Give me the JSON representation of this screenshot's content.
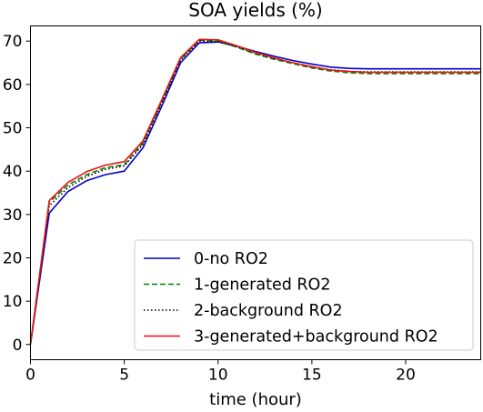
{
  "chart_data": {
    "type": "line",
    "title": "SOA yields (%)",
    "xlabel": "time (hour)",
    "ylabel": "",
    "xlim": [
      0,
      24
    ],
    "ylim": [
      -3.5,
      73.5
    ],
    "xticks": [
      0,
      5,
      10,
      15,
      20
    ],
    "yticks": [
      0,
      10,
      20,
      30,
      40,
      50,
      60,
      70
    ],
    "grid": false,
    "legend_position": "lower-right",
    "x": [
      0,
      1,
      2,
      3,
      4,
      5,
      6,
      7,
      8,
      9,
      10,
      11,
      12,
      13,
      14,
      15,
      16,
      17,
      18,
      19,
      20,
      21,
      22,
      23,
      24
    ],
    "series": [
      {
        "name": "0-no RO2",
        "color": "#0000cc",
        "style": "solid",
        "values": [
          0,
          30.3,
          35.3,
          37.8,
          39.2,
          40.0,
          45.4,
          55.0,
          65.0,
          69.6,
          69.8,
          68.8,
          67.6,
          66.5,
          65.5,
          64.7,
          64.0,
          63.7,
          63.6,
          63.6,
          63.6,
          63.6,
          63.6,
          63.6,
          63.6
        ]
      },
      {
        "name": "1-generated RO2",
        "color": "#008000",
        "style": "dashed",
        "values": [
          0,
          32.8,
          36.8,
          39.2,
          40.8,
          41.5,
          46.5,
          56.0,
          65.8,
          70.2,
          70.0,
          68.6,
          67.0,
          65.8,
          64.8,
          63.8,
          63.1,
          62.7,
          62.5,
          62.5,
          62.5,
          62.5,
          62.5,
          62.5,
          62.5
        ]
      },
      {
        "name": "2-background RO2",
        "color": "#000000",
        "style": "dotted",
        "values": [
          0,
          32.0,
          36.2,
          38.8,
          40.4,
          41.2,
          46.2,
          55.8,
          65.6,
          70.0,
          69.9,
          68.7,
          67.2,
          66.0,
          65.0,
          64.0,
          63.4,
          63.0,
          62.9,
          62.9,
          62.9,
          62.9,
          62.9,
          62.9,
          62.9
        ]
      },
      {
        "name": "3-generated+background RO2",
        "color": "#ee1111",
        "style": "solid",
        "values": [
          0,
          33.2,
          37.4,
          39.9,
          41.4,
          42.2,
          47.0,
          56.5,
          66.2,
          70.4,
          70.3,
          68.9,
          67.4,
          66.1,
          65.0,
          64.1,
          63.3,
          63.0,
          62.8,
          62.8,
          62.8,
          62.8,
          62.8,
          62.8,
          62.8
        ]
      }
    ]
  }
}
